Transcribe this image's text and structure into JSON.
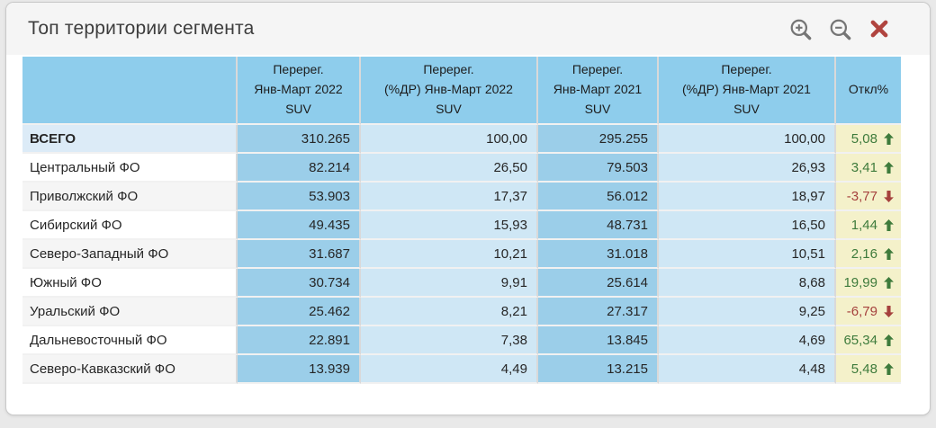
{
  "title": "Топ территории сегмента",
  "toolbar": {
    "zoom_in": "zoom-in",
    "zoom_out": "zoom-out",
    "close": "close"
  },
  "table": {
    "headers": [
      "",
      "Перерег.\nЯнв-Март 2022\nSUV",
      "Перерег.\n(%ДР) Янв-Март 2022\nSUV",
      "Перерег.\nЯнв-Март 2021\nSUV",
      "Перерег.\n(%ДР) Янв-Март 2021\nSUV",
      "Откл%"
    ],
    "rows": [
      {
        "name": "ВСЕГО",
        "total": true,
        "reg_2022": "310.265",
        "share_2022": "100,00",
        "reg_2021": "295.255",
        "share_2021": "100,00",
        "deviation": "5,08",
        "trend": "up"
      },
      {
        "name": "Центральный ФО",
        "total": false,
        "reg_2022": "82.214",
        "share_2022": "26,50",
        "reg_2021": "79.503",
        "share_2021": "26,93",
        "deviation": "3,41",
        "trend": "up"
      },
      {
        "name": "Приволжский ФО",
        "total": false,
        "reg_2022": "53.903",
        "share_2022": "17,37",
        "reg_2021": "56.012",
        "share_2021": "18,97",
        "deviation": "-3,77",
        "trend": "down"
      },
      {
        "name": "Сибирский ФО",
        "total": false,
        "reg_2022": "49.435",
        "share_2022": "15,93",
        "reg_2021": "48.731",
        "share_2021": "16,50",
        "deviation": "1,44",
        "trend": "up"
      },
      {
        "name": "Северо-Западный ФО",
        "total": false,
        "reg_2022": "31.687",
        "share_2022": "10,21",
        "reg_2021": "31.018",
        "share_2021": "10,51",
        "deviation": "2,16",
        "trend": "up"
      },
      {
        "name": "Южный ФО",
        "total": false,
        "reg_2022": "30.734",
        "share_2022": "9,91",
        "reg_2021": "25.614",
        "share_2021": "8,68",
        "deviation": "19,99",
        "trend": "up"
      },
      {
        "name": "Уральский ФО",
        "total": false,
        "reg_2022": "25.462",
        "share_2022": "8,21",
        "reg_2021": "27.317",
        "share_2021": "9,25",
        "deviation": "-6,79",
        "trend": "down"
      },
      {
        "name": "Дальневосточный ФО",
        "total": false,
        "reg_2022": "22.891",
        "share_2022": "7,38",
        "reg_2021": "13.845",
        "share_2021": "4,69",
        "deviation": "65,34",
        "trend": "up"
      },
      {
        "name": "Северо-Кавказский ФО",
        "total": false,
        "reg_2022": "13.939",
        "share_2022": "4,49",
        "reg_2021": "13.215",
        "share_2021": "4,48",
        "deviation": "5,48",
        "trend": "up"
      }
    ]
  },
  "colors": {
    "page_bg": "#e9e9e9",
    "card_bg": "#ffffff",
    "titlebar_bg": "#f5f5f5",
    "title_color": "#3d3d3d",
    "header_bg": "#8ecdec",
    "count_bg": "#9bcee9",
    "pct_bg": "#cfe7f5",
    "total_bg": "#dcebf7",
    "stripe_bg": "#f5f5f5",
    "dev_bg": "#f4f1ca",
    "positive": "#3e7b3c",
    "negative": "#a5413d",
    "icon_gray": "#757575",
    "close_red": "#b0443f",
    "col_sep": "#d9d9d9",
    "row_sep": "#f1f1f1"
  }
}
